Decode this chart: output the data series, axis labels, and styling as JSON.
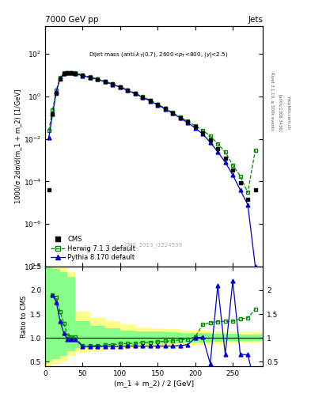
{
  "title_left": "7000 GeV pp",
  "title_right": "Jets",
  "annotation": "Dijet mass (anti-$k_{T}$(0.7), 2600<$p_{T}$<800, |y|<2.5)",
  "cms_label": "CMS_2013_I1224539",
  "rivet_label": "Rivet 3.1.10, ≥ 500k events",
  "arxiv_label": "[arXiv:1306.3436]",
  "mcplots_label": "mcplots.cern.ch",
  "ylabel_main": "1000/σ 2dσ/d(m_1 + m_2) [1/GeV]",
  "ylabel_ratio": "Ratio to CMS",
  "xlabel": "(m_1 + m_2) / 2 [GeV]",
  "xlim": [
    0,
    290
  ],
  "ylim_main": [
    1e-08,
    2000.0
  ],
  "ylim_ratio": [
    0.4,
    2.5
  ],
  "x_cms": [
    5,
    10,
    15,
    20,
    25,
    30,
    35,
    40,
    50,
    60,
    70,
    80,
    90,
    100,
    110,
    120,
    130,
    140,
    150,
    160,
    170,
    180,
    190,
    200,
    210,
    220,
    230,
    240,
    250,
    260,
    270,
    280
  ],
  "y_cms": [
    4e-05,
    0.15,
    1.4,
    6.5,
    11.5,
    13,
    13,
    12,
    10,
    8,
    6.5,
    5,
    3.8,
    2.8,
    2.0,
    1.4,
    0.95,
    0.65,
    0.42,
    0.27,
    0.17,
    0.1,
    0.062,
    0.037,
    0.019,
    0.009,
    0.0035,
    0.0012,
    0.00035,
    9e-05,
    1.5e-05,
    4e-05
  ],
  "x_herwig": [
    5,
    10,
    15,
    20,
    25,
    30,
    35,
    40,
    50,
    60,
    70,
    80,
    90,
    100,
    110,
    120,
    130,
    140,
    150,
    160,
    170,
    180,
    190,
    200,
    210,
    220,
    230,
    240,
    250,
    260,
    270,
    280
  ],
  "y_herwig": [
    0.025,
    0.23,
    2.0,
    8.0,
    12.5,
    13.5,
    13.5,
    12.5,
    10.5,
    8.2,
    6.7,
    5.1,
    3.9,
    2.85,
    2.05,
    1.43,
    0.97,
    0.67,
    0.43,
    0.28,
    0.175,
    0.105,
    0.067,
    0.042,
    0.025,
    0.014,
    0.006,
    0.0024,
    0.0006,
    0.00018,
    3e-05,
    0.003
  ],
  "x_pythia": [
    5,
    10,
    15,
    20,
    25,
    30,
    35,
    40,
    50,
    60,
    70,
    80,
    90,
    100,
    110,
    120,
    130,
    140,
    150,
    160,
    170,
    180,
    190,
    200,
    210,
    220,
    230,
    240,
    250,
    260,
    270,
    280
  ],
  "y_pythia": [
    0.012,
    0.15,
    1.7,
    7.2,
    11.5,
    12.5,
    12.5,
    11.5,
    9.5,
    7.8,
    6.3,
    4.9,
    3.7,
    2.7,
    1.9,
    1.35,
    0.9,
    0.62,
    0.4,
    0.26,
    0.16,
    0.097,
    0.058,
    0.033,
    0.017,
    0.007,
    0.0025,
    0.0008,
    0.0002,
    4e-05,
    8e-06,
    1e-08
  ],
  "ratio_x": [
    10,
    15,
    20,
    25,
    30,
    35,
    40,
    50,
    60,
    70,
    80,
    90,
    100,
    110,
    120,
    130,
    140,
    150,
    160,
    170,
    180,
    190,
    200,
    210,
    220,
    230,
    240,
    250,
    260,
    270,
    280
  ],
  "ratio_herwig": [
    1.9,
    1.85,
    1.55,
    1.3,
    1.05,
    1.02,
    1.02,
    0.83,
    0.83,
    0.84,
    0.85,
    0.86,
    0.88,
    0.88,
    0.89,
    0.9,
    0.91,
    0.92,
    0.93,
    0.94,
    0.96,
    0.97,
    1.02,
    1.28,
    1.32,
    1.34,
    1.35,
    1.35,
    1.4,
    1.42,
    1.6
  ],
  "ratio_pythia": [
    1.9,
    1.75,
    1.35,
    1.1,
    0.97,
    0.97,
    0.97,
    0.82,
    0.82,
    0.82,
    0.82,
    0.82,
    0.82,
    0.83,
    0.83,
    0.83,
    0.83,
    0.83,
    0.83,
    0.83,
    0.84,
    0.86,
    1.0,
    1.02,
    0.46,
    2.1,
    0.65,
    2.2,
    0.65,
    0.65,
    1e-08
  ],
  "band_x_edges": [
    0,
    10,
    20,
    30,
    40,
    60,
    80,
    100,
    120,
    140,
    160,
    180,
    200,
    220,
    240,
    260,
    290
  ],
  "band_yellow_lo": [
    0.4,
    0.45,
    0.5,
    0.62,
    0.68,
    0.72,
    0.75,
    0.78,
    0.8,
    0.82,
    0.83,
    0.84,
    0.85,
    0.87,
    0.88,
    0.9
  ],
  "band_yellow_hi": [
    2.6,
    2.55,
    2.5,
    2.38,
    1.55,
    1.42,
    1.35,
    1.28,
    1.22,
    1.2,
    1.18,
    1.16,
    1.15,
    1.14,
    1.14,
    1.12
  ],
  "band_green_lo": [
    0.5,
    0.55,
    0.62,
    0.72,
    0.78,
    0.8,
    0.83,
    0.85,
    0.87,
    0.88,
    0.89,
    0.9,
    0.91,
    0.92,
    0.93,
    0.94
  ],
  "band_green_hi": [
    2.5,
    2.45,
    2.38,
    2.28,
    1.35,
    1.25,
    1.2,
    1.15,
    1.14,
    1.13,
    1.12,
    1.11,
    1.1,
    1.09,
    1.08,
    1.07
  ],
  "color_cms": "#000000",
  "color_herwig": "#008800",
  "color_pythia": "#0000cc",
  "color_yellow": "#ffff88",
  "color_green": "#88ff88",
  "background": "#ffffff"
}
